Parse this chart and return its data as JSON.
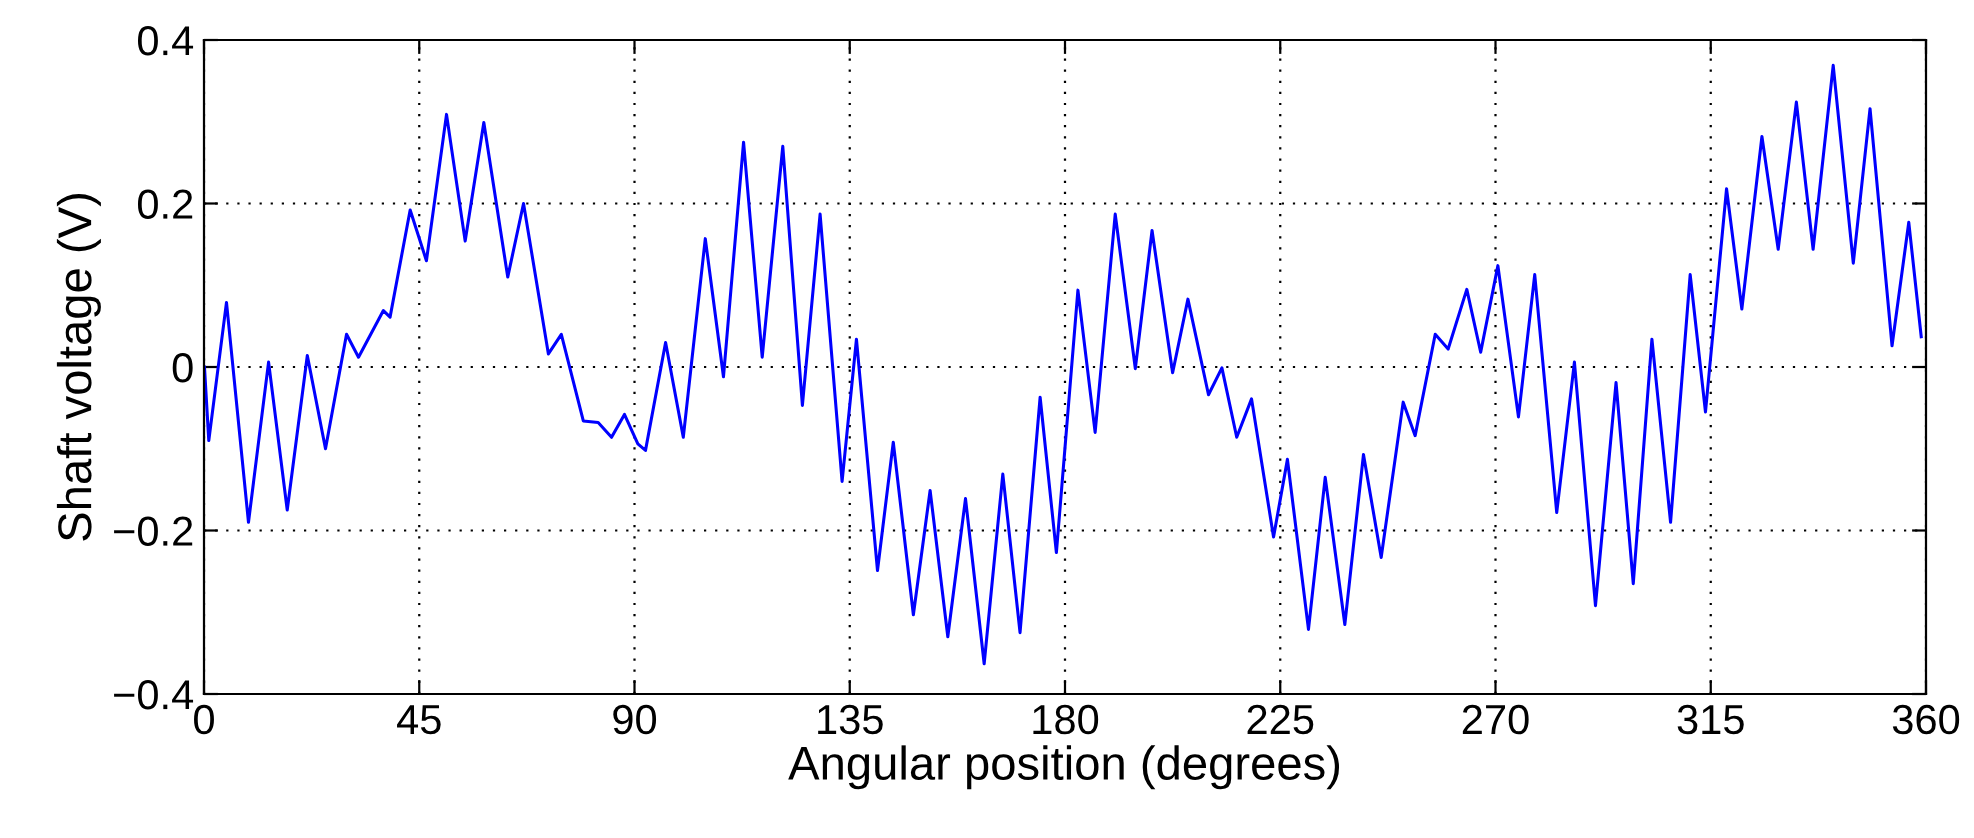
{
  "chart_data": {
    "type": "line",
    "xlabel": "Angular position (degrees)",
    "ylabel": "Shaft voltage (V)",
    "xlim": [
      0,
      360
    ],
    "ylim": [
      -0.4,
      0.4
    ],
    "xticks": [
      0,
      45,
      90,
      135,
      180,
      225,
      270,
      315,
      360
    ],
    "yticks": [
      {
        "value": -0.4,
        "label": "−0.4"
      },
      {
        "value": -0.2,
        "label": "−0.2"
      },
      0,
      0.2,
      0.4
    ],
    "grid": true,
    "legend": false,
    "marker": "none",
    "line_style": "solid",
    "series": [
      {
        "color": "#0000ff",
        "x": [
          0.1,
          1.0,
          4.7,
          9.3,
          13.5,
          17.4,
          21.6,
          25.4,
          29.8,
          32.3,
          37.5,
          38.9,
          43.1,
          46.5,
          50.7,
          54.6,
          58.5,
          63.5,
          66.8,
          72.0,
          74.7,
          79.3,
          82.4,
          85.2,
          87.9,
          90.7,
          92.3,
          96.5,
          100.2,
          104.8,
          108.6,
          112.8,
          116.7,
          121.0,
          125.1,
          128.8,
          133.4,
          136.4,
          140.8,
          144.1,
          148.3,
          151.8,
          155.5,
          159.2,
          163.1,
          167.0,
          170.6,
          174.8,
          178.2,
          182.7,
          186.3,
          190.5,
          194.7,
          198.2,
          202.5,
          205.7,
          210.0,
          212.8,
          215.9,
          219.0,
          223.6,
          226.5,
          230.9,
          234.4,
          238.5,
          242.4,
          246.1,
          250.7,
          253.2,
          257.4,
          260.1,
          264.0,
          266.9,
          270.5,
          274.8,
          278.2,
          282.8,
          286.5,
          290.9,
          295.2,
          298.8,
          302.7,
          306.6,
          310.7,
          313.9,
          318.3,
          321.5,
          325.7,
          329.1,
          332.9,
          336.4,
          340.6,
          344.8,
          348.3,
          352.9,
          356.4,
          359.0
        ],
        "values": [
          -0.0,
          -0.09,
          0.079,
          -0.19,
          0.006,
          -0.175,
          0.014,
          -0.1,
          0.04,
          0.012,
          0.069,
          0.061,
          0.192,
          0.13,
          0.309,
          0.154,
          0.299,
          0.11,
          0.2,
          0.016,
          0.04,
          -0.066,
          -0.068,
          -0.086,
          -0.058,
          -0.094,
          -0.102,
          0.03,
          -0.086,
          0.157,
          -0.012,
          0.275,
          0.012,
          0.27,
          -0.047,
          0.187,
          -0.14,
          0.034,
          -0.249,
          -0.092,
          -0.303,
          -0.151,
          -0.33,
          -0.161,
          -0.363,
          -0.131,
          -0.325,
          -0.037,
          -0.227,
          0.094,
          -0.08,
          0.187,
          -0.002,
          0.167,
          -0.007,
          0.083,
          -0.034,
          -0.001,
          -0.086,
          -0.039,
          -0.208,
          -0.113,
          -0.321,
          -0.135,
          -0.315,
          -0.107,
          -0.233,
          -0.043,
          -0.084,
          0.04,
          0.022,
          0.095,
          0.018,
          0.124,
          -0.061,
          0.113,
          -0.178,
          0.006,
          -0.292,
          -0.019,
          -0.265,
          0.034,
          -0.19,
          0.113,
          -0.055,
          0.218,
          0.071,
          0.282,
          0.144,
          0.324,
          0.144,
          0.369,
          0.127,
          0.316,
          0.026,
          0.177,
          0.037
        ]
      }
    ]
  }
}
